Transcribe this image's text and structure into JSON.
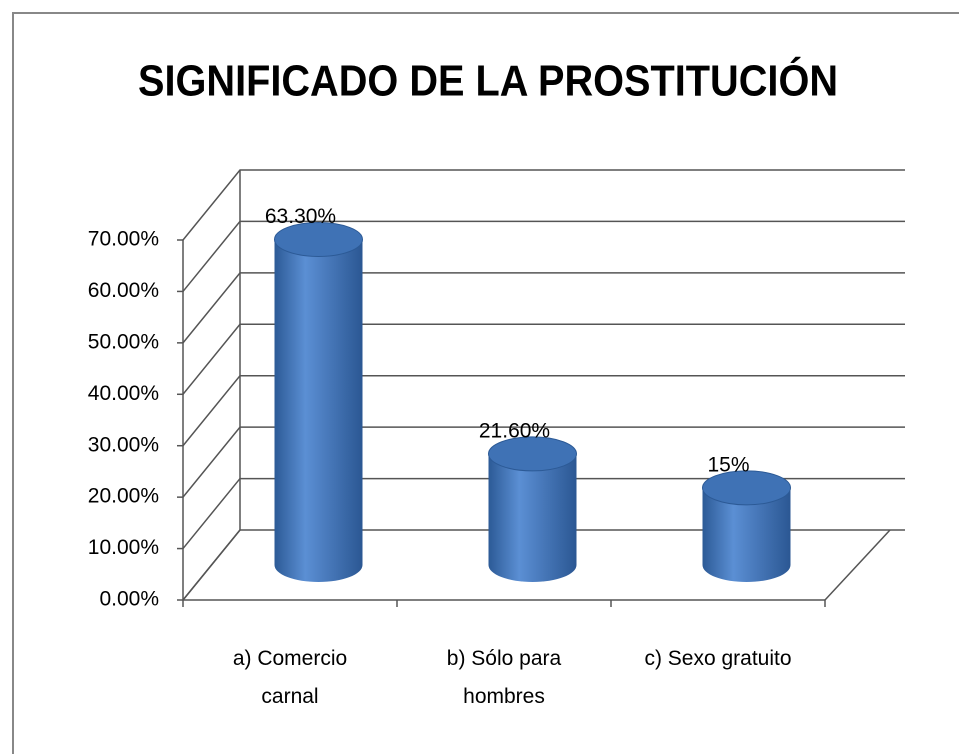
{
  "chart_data": {
    "type": "bar3d",
    "title": "SIGNIFICADO DE LA PROSTITUCIÓN",
    "categories": [
      "a)  Comercio carnal",
      "b)  Sólo para hombres",
      "c)  Sexo gratuito"
    ],
    "values": [
      63.3,
      21.6,
      15
    ],
    "value_labels": [
      "63.30%",
      "21.60%",
      "15%"
    ],
    "color": "#4a7ebb",
    "ylim": [
      0,
      70
    ],
    "yticks": [
      {
        "value": 0,
        "label": "0.00%"
      },
      {
        "value": 10,
        "label": "10.00%"
      },
      {
        "value": 20,
        "label": "20.00%"
      },
      {
        "value": 30,
        "label": "30.00%"
      },
      {
        "value": 40,
        "label": "40.00%"
      },
      {
        "value": 50,
        "label": "50.00%"
      },
      {
        "value": 60,
        "label": "60.00%"
      },
      {
        "value": 70,
        "label": "70.00%"
      }
    ],
    "grid": true
  }
}
